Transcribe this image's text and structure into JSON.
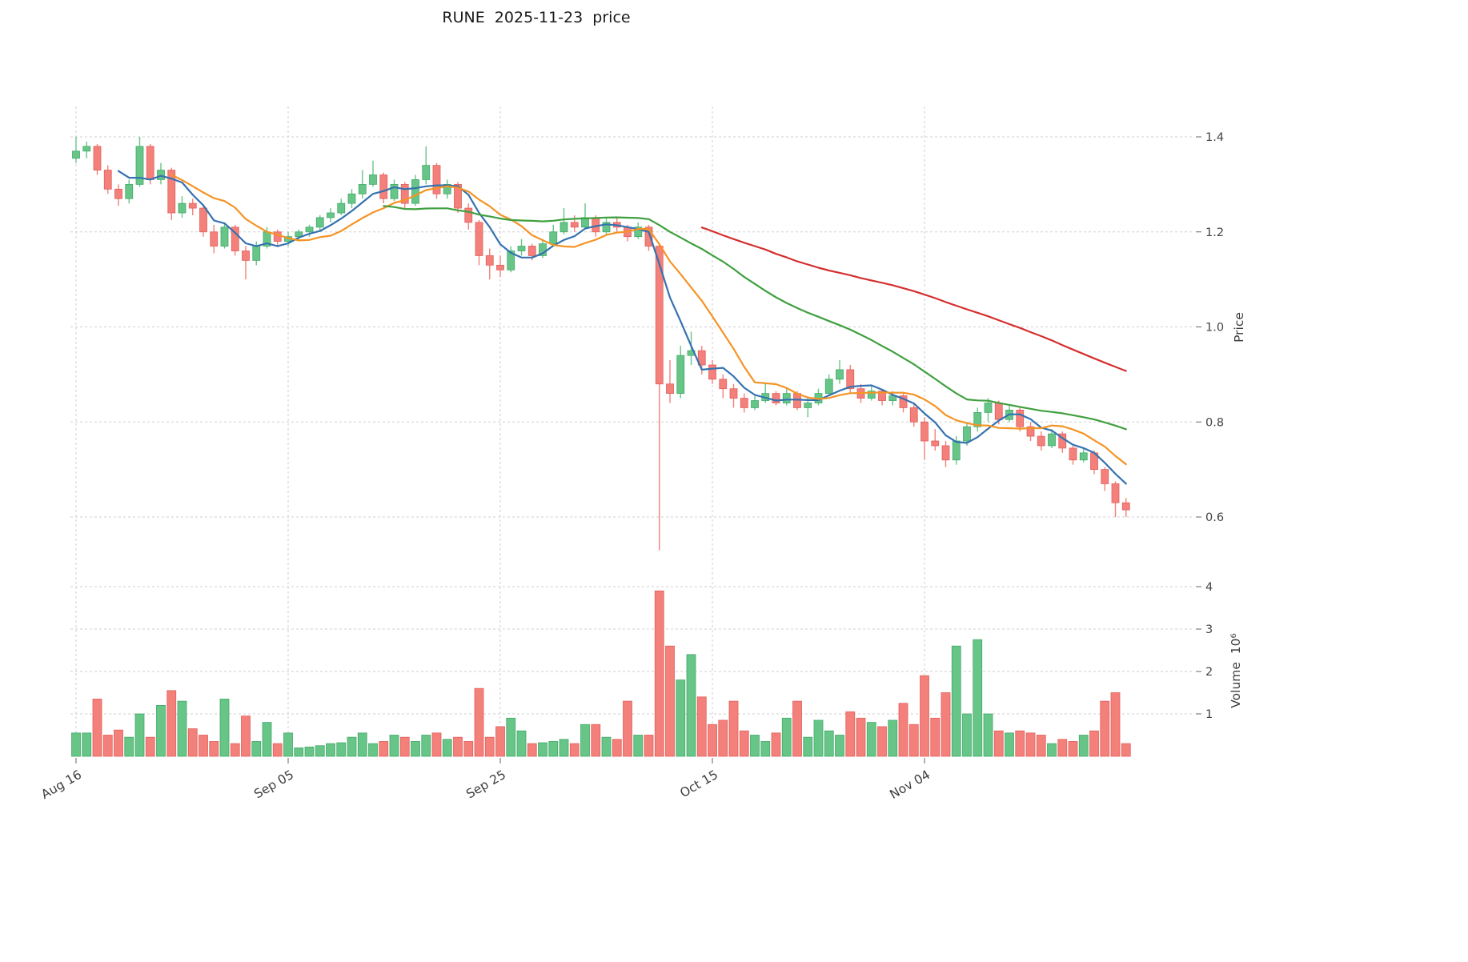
{
  "chart_data": {
    "type": "candlestick",
    "title": "RUNE  2025-11-23  price",
    "ylabel": "Price",
    "ylabel_volume": "Volume  10⁶",
    "grid": true,
    "legend": "none",
    "price_ticks": [
      0.6,
      0.8,
      1.0,
      1.2,
      1.4
    ],
    "volume_ticks": [
      1,
      2,
      3,
      4
    ],
    "price_range": [
      0.5,
      1.45
    ],
    "volume_range": [
      0,
      4.2
    ],
    "x_ticks": [
      {
        "label": "Aug 16",
        "index": 0
      },
      {
        "label": "Sep 05",
        "index": 20
      },
      {
        "label": "Sep 25",
        "index": 40
      },
      {
        "label": "Oct 15",
        "index": 60
      },
      {
        "label": "Nov 04",
        "index": 80
      }
    ],
    "up_color": "#67c587",
    "down_color": "#f3807a",
    "up_edge": "#44a96b",
    "down_edge": "#e2605c",
    "grid_color": "#cfcfcf",
    "tick_text_color": "#444444",
    "moving_averages": [
      {
        "name": "SMA5",
        "window": 5,
        "color": "#3472b0"
      },
      {
        "name": "SMA10",
        "window": 10,
        "color": "#f59425"
      },
      {
        "name": "SMA30",
        "window": 30,
        "color": "#3fa03f"
      },
      {
        "name": "SMA60",
        "window": 60,
        "color": "#d62f2f"
      }
    ],
    "candles": {
      "open": [
        1.355,
        1.37,
        1.38,
        1.33,
        1.29,
        1.27,
        1.3,
        1.38,
        1.31,
        1.33,
        1.24,
        1.26,
        1.25,
        1.2,
        1.17,
        1.21,
        1.16,
        1.14,
        1.17,
        1.2,
        1.18,
        1.19,
        1.2,
        1.21,
        1.23,
        1.24,
        1.26,
        1.28,
        1.3,
        1.32,
        1.27,
        1.3,
        1.26,
        1.31,
        1.34,
        1.28,
        1.3,
        1.25,
        1.22,
        1.15,
        1.13,
        1.12,
        1.16,
        1.17,
        1.15,
        1.175,
        1.2,
        1.22,
        1.21,
        1.23,
        1.2,
        1.22,
        1.21,
        1.19,
        1.21,
        1.17,
        0.88,
        0.86,
        0.94,
        0.95,
        0.92,
        0.89,
        0.87,
        0.85,
        0.83,
        0.845,
        0.86,
        0.84,
        0.86,
        0.83,
        0.84,
        0.86,
        0.89,
        0.91,
        0.87,
        0.85,
        0.865,
        0.845,
        0.855,
        0.83,
        0.8,
        0.76,
        0.75,
        0.72,
        0.76,
        0.79,
        0.82,
        0.84,
        0.805,
        0.825,
        0.79,
        0.77,
        0.75,
        0.775,
        0.745,
        0.72,
        0.735,
        0.7,
        0.67,
        0.63
      ],
      "high": [
        1.4,
        1.39,
        1.385,
        1.34,
        1.3,
        1.31,
        1.4,
        1.385,
        1.345,
        1.335,
        1.275,
        1.27,
        1.255,
        1.215,
        1.22,
        1.215,
        1.17,
        1.18,
        1.21,
        1.205,
        1.2,
        1.205,
        1.215,
        1.235,
        1.25,
        1.27,
        1.29,
        1.33,
        1.35,
        1.325,
        1.31,
        1.305,
        1.32,
        1.38,
        1.345,
        1.31,
        1.305,
        1.26,
        1.225,
        1.165,
        1.15,
        1.17,
        1.185,
        1.175,
        1.185,
        1.215,
        1.25,
        1.235,
        1.26,
        1.235,
        1.23,
        1.23,
        1.215,
        1.22,
        1.215,
        1.175,
        0.93,
        0.96,
        0.99,
        0.96,
        0.93,
        0.9,
        0.88,
        0.86,
        0.855,
        0.88,
        0.865,
        0.87,
        0.865,
        0.85,
        0.87,
        0.9,
        0.93,
        0.92,
        0.88,
        0.875,
        0.87,
        0.865,
        0.86,
        0.84,
        0.81,
        0.785,
        0.76,
        0.77,
        0.8,
        0.83,
        0.85,
        0.845,
        0.835,
        0.83,
        0.8,
        0.78,
        0.785,
        0.78,
        0.75,
        0.745,
        0.74,
        0.705,
        0.675,
        0.64
      ],
      "low": [
        1.345,
        1.355,
        1.32,
        1.28,
        1.255,
        1.26,
        1.295,
        1.3,
        1.3,
        1.225,
        1.23,
        1.235,
        1.19,
        1.155,
        1.165,
        1.15,
        1.1,
        1.13,
        1.165,
        1.17,
        1.17,
        1.18,
        1.19,
        1.2,
        1.22,
        1.235,
        1.25,
        1.27,
        1.295,
        1.26,
        1.265,
        1.25,
        1.255,
        1.3,
        1.27,
        1.27,
        1.24,
        1.205,
        1.13,
        1.1,
        1.105,
        1.115,
        1.15,
        1.14,
        1.145,
        1.17,
        1.195,
        1.2,
        1.205,
        1.19,
        1.195,
        1.2,
        1.18,
        1.185,
        1.16,
        0.53,
        0.84,
        0.85,
        0.92,
        0.9,
        0.88,
        0.85,
        0.83,
        0.82,
        0.825,
        0.84,
        0.835,
        0.835,
        0.825,
        0.81,
        0.835,
        0.855,
        0.88,
        0.86,
        0.84,
        0.845,
        0.835,
        0.835,
        0.82,
        0.79,
        0.72,
        0.74,
        0.705,
        0.71,
        0.75,
        0.78,
        0.8,
        0.795,
        0.8,
        0.78,
        0.76,
        0.74,
        0.745,
        0.735,
        0.71,
        0.715,
        0.69,
        0.655,
        0.6,
        0.6
      ],
      "close": [
        1.37,
        1.38,
        1.33,
        1.29,
        1.27,
        1.3,
        1.38,
        1.31,
        1.33,
        1.24,
        1.26,
        1.25,
        1.2,
        1.17,
        1.21,
        1.16,
        1.14,
        1.17,
        1.2,
        1.18,
        1.19,
        1.2,
        1.21,
        1.23,
        1.24,
        1.26,
        1.28,
        1.3,
        1.32,
        1.27,
        1.3,
        1.26,
        1.31,
        1.34,
        1.28,
        1.3,
        1.25,
        1.22,
        1.15,
        1.13,
        1.12,
        1.16,
        1.17,
        1.15,
        1.175,
        1.2,
        1.22,
        1.21,
        1.23,
        1.2,
        1.22,
        1.21,
        1.19,
        1.21,
        1.17,
        0.88,
        0.86,
        0.94,
        0.95,
        0.92,
        0.89,
        0.87,
        0.85,
        0.83,
        0.845,
        0.86,
        0.84,
        0.86,
        0.83,
        0.84,
        0.86,
        0.89,
        0.91,
        0.87,
        0.85,
        0.865,
        0.845,
        0.855,
        0.83,
        0.8,
        0.76,
        0.75,
        0.72,
        0.76,
        0.79,
        0.82,
        0.84,
        0.805,
        0.825,
        0.79,
        0.77,
        0.75,
        0.775,
        0.745,
        0.72,
        0.735,
        0.7,
        0.67,
        0.63,
        0.615
      ]
    },
    "volume": [
      0.55,
      0.55,
      1.35,
      0.5,
      0.62,
      0.45,
      1.0,
      0.45,
      1.2,
      1.55,
      1.3,
      0.65,
      0.5,
      0.35,
      1.35,
      0.3,
      0.95,
      0.35,
      0.8,
      0.3,
      0.55,
      0.2,
      0.22,
      0.25,
      0.3,
      0.32,
      0.45,
      0.55,
      0.3,
      0.35,
      0.5,
      0.45,
      0.35,
      0.5,
      0.55,
      0.4,
      0.45,
      0.35,
      1.6,
      0.45,
      0.7,
      0.9,
      0.6,
      0.3,
      0.32,
      0.35,
      0.4,
      0.3,
      0.75,
      0.75,
      0.45,
      0.4,
      1.3,
      0.5,
      0.5,
      3.9,
      2.6,
      1.8,
      2.4,
      1.4,
      0.75,
      0.85,
      1.3,
      0.6,
      0.5,
      0.35,
      0.55,
      0.9,
      1.3,
      0.45,
      0.85,
      0.6,
      0.5,
      1.05,
      0.9,
      0.8,
      0.7,
      0.85,
      1.25,
      0.75,
      1.9,
      0.9,
      1.5,
      2.6,
      1.0,
      2.75,
      1.0,
      0.6,
      0.55,
      0.6,
      0.55,
      0.5,
      0.3,
      0.4,
      0.35,
      0.5,
      0.6,
      1.3,
      1.5,
      0.3
    ]
  }
}
